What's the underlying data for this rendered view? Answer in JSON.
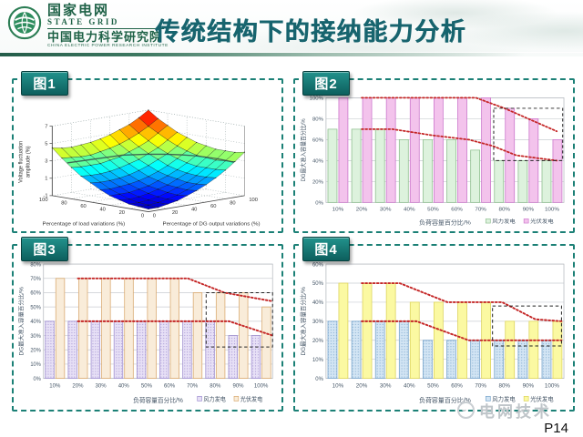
{
  "header": {
    "org_cn": "国家电网",
    "org_en": "STATE GRID",
    "inst_cn": "中国电力科学研究院",
    "inst_en": "CHINA ELECTRIC POWER RESEARCH INSTITUTE"
  },
  "title": "传统结构下的接纳能力分析",
  "footer": {
    "watermark": "电网技术",
    "page": "P14"
  },
  "panels": [
    {
      "badge": "图1"
    },
    {
      "badge": "图2"
    },
    {
      "badge": "图3"
    },
    {
      "badge": "图4"
    }
  ],
  "colors": {
    "badge_teal": "#0d5f5d",
    "panel_border": "#1b8076",
    "title_teal": "#17646e",
    "trend_red": "#c42525",
    "axis_text": "#445566",
    "grid_line": "#c9cdd2"
  },
  "chart_data": [
    {
      "type": "surface",
      "panel": "图1",
      "zlabel": "Voltage fluctuation amplitude (%)",
      "xlabel": "Percentage of DG output variations (%)",
      "ylabel": "Percentage of load variations (%)",
      "x_ticks": [
        0,
        20,
        40,
        60,
        80,
        100
      ],
      "y_ticks": [
        0,
        20,
        40,
        60,
        80,
        100
      ],
      "z_ticks": [
        -1,
        1,
        3,
        5,
        7
      ],
      "zlim": [
        -1,
        7
      ],
      "colormap": "jet",
      "contour_level": 3,
      "z_grid": [
        [
          -0.7,
          -0.7,
          -0.5,
          -0.3,
          0.1,
          0.5,
          1.0,
          1.6,
          2.3,
          3.1,
          4.0
        ],
        [
          -0.6,
          -0.6,
          -0.5,
          -0.3,
          0.0,
          0.4,
          0.9,
          1.5,
          2.2,
          3.0,
          3.8
        ],
        [
          -0.5,
          -0.5,
          -0.4,
          -0.2,
          0.1,
          0.5,
          0.9,
          1.5,
          2.2,
          2.9,
          3.8
        ],
        [
          -0.2,
          -0.3,
          -0.2,
          0.0,
          0.3,
          0.6,
          1.1,
          1.6,
          2.2,
          3.0,
          3.8
        ],
        [
          0.1,
          0.1,
          0.1,
          0.3,
          0.5,
          0.9,
          1.3,
          1.8,
          2.4,
          3.1,
          4.0
        ],
        [
          0.6,
          0.5,
          0.6,
          0.7,
          0.9,
          1.2,
          1.6,
          2.1,
          2.7,
          3.4,
          4.2
        ],
        [
          1.2,
          1.1,
          1.1,
          1.2,
          1.4,
          1.7,
          2.1,
          2.6,
          3.1,
          3.8,
          4.6
        ],
        [
          1.8,
          1.7,
          1.7,
          1.8,
          2.0,
          2.3,
          2.6,
          3.1,
          3.6,
          4.3,
          5.0
        ],
        [
          2.6,
          2.5,
          2.5,
          2.5,
          2.7,
          2.9,
          3.3,
          3.7,
          4.2,
          4.9,
          5.6
        ],
        [
          3.5,
          3.4,
          3.3,
          3.3,
          3.5,
          3.7,
          4.0,
          4.4,
          4.9,
          5.5,
          6.2
        ],
        [
          4.5,
          4.3,
          4.2,
          4.3,
          4.4,
          4.6,
          4.9,
          5.3,
          5.7,
          6.3,
          7.0
        ]
      ]
    },
    {
      "type": "bar",
      "panel": "图2",
      "categories": [
        "10%",
        "20%",
        "30%",
        "40%",
        "50%",
        "60%",
        "70%",
        "80%",
        "90%",
        "100%"
      ],
      "series": [
        {
          "name": "风力发电",
          "values": [
            70,
            70,
            70,
            60,
            60,
            60,
            50,
            40,
            40,
            40
          ],
          "fill": "#ddf2dd",
          "stroke": "#8fbf8f",
          "pattern": "none"
        },
        {
          "name": "光伏发电",
          "values": [
            100,
            100,
            100,
            100,
            100,
            100,
            100,
            90,
            80,
            60
          ],
          "fill": "#f3c3ec",
          "stroke": "#cc77cc",
          "pattern": "none"
        }
      ],
      "ylim": [
        0,
        100
      ],
      "y_step": 20,
      "xlabel": "负荷容量百分比/%",
      "ylabel": "DG最大准入容量百分比/%",
      "trend_upper": [
        [
          1,
          100
        ],
        [
          5.8,
          100
        ],
        [
          7,
          90
        ],
        [
          8,
          80
        ],
        [
          9.2,
          68
        ]
      ],
      "trend_lower": [
        [
          1,
          70
        ],
        [
          2.3,
          70
        ],
        [
          4,
          64
        ],
        [
          5.5,
          60
        ],
        [
          6.5,
          54
        ],
        [
          7.5,
          45
        ],
        [
          8.5,
          42
        ],
        [
          9.2,
          40
        ]
      ],
      "highlight": {
        "x0": 6.55,
        "x1": 9.45,
        "y0": 40,
        "y1": 90
      }
    },
    {
      "type": "bar",
      "panel": "图3",
      "categories": [
        "10%",
        "20%",
        "30%",
        "40%",
        "50%",
        "60%",
        "70%",
        "80%",
        "90%",
        "100%"
      ],
      "series": [
        {
          "name": "风力发电",
          "values": [
            40,
            40,
            40,
            40,
            40,
            40,
            40,
            40,
            30,
            30
          ],
          "fill": "#e7e0f6",
          "stroke": "#9f8fd0",
          "pattern": "dots"
        },
        {
          "name": "光伏发电",
          "values": [
            70,
            70,
            70,
            70,
            70,
            70,
            60,
            60,
            60,
            50
          ],
          "fill": "#f9ecd9",
          "stroke": "#d9a96f",
          "pattern": "none"
        }
      ],
      "ylim": [
        0,
        80
      ],
      "y_step": 10,
      "xlabel": "负荷容量百分比/%",
      "ylabel": "DG最大准入容量百分比/%",
      "trend_upper": [
        [
          1,
          70
        ],
        [
          5.8,
          70
        ],
        [
          7.4,
          60
        ],
        [
          9.5,
          54
        ]
      ],
      "trend_lower": [
        [
          1,
          40
        ],
        [
          7.6,
          40
        ],
        [
          9.5,
          30
        ]
      ],
      "highlight": {
        "x0": 6.6,
        "x1": 9.5,
        "y0": 22,
        "y1": 60
      }
    },
    {
      "type": "bar",
      "panel": "图4",
      "categories": [
        "10%",
        "20%",
        "30%",
        "40%",
        "50%",
        "60%",
        "70%",
        "80%",
        "90%",
        "100%"
      ],
      "series": [
        {
          "name": "风力发电",
          "values": [
            30,
            30,
            30,
            30,
            20,
            20,
            20,
            20,
            20,
            20
          ],
          "fill": "#d3e5f4",
          "stroke": "#7aa6cc",
          "pattern": "dots"
        },
        {
          "name": "光伏发电",
          "values": [
            50,
            50,
            50,
            40,
            40,
            40,
            40,
            30,
            30,
            30
          ],
          "fill": "#fbf9a2",
          "stroke": "#ddd45e",
          "pattern": "none"
        }
      ],
      "ylim": [
        0,
        60
      ],
      "y_step": 10,
      "xlabel": "负荷容量百分比/%",
      "ylabel": "DG最大准入容量百分比/%",
      "trend_upper": [
        [
          1,
          50
        ],
        [
          2.6,
          50
        ],
        [
          4.6,
          40
        ],
        [
          6.9,
          40
        ],
        [
          8.3,
          31
        ],
        [
          9.4,
          30
        ]
      ],
      "trend_lower": [
        [
          1,
          30
        ],
        [
          3.3,
          30
        ],
        [
          5.5,
          20
        ],
        [
          9.4,
          20
        ]
      ],
      "highlight": {
        "x0": 6.5,
        "x1": 9.4,
        "y0": 17,
        "y1": 38
      }
    }
  ]
}
